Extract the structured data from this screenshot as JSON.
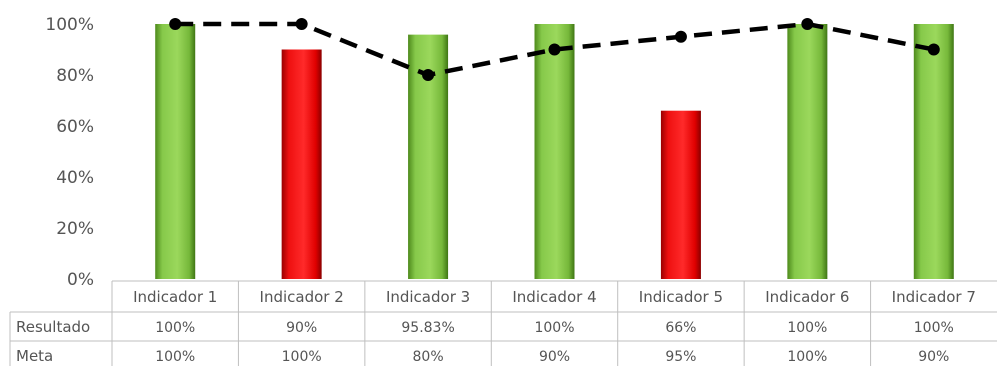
{
  "chart_data": {
    "type": "bar",
    "categories": [
      "Indicador 1",
      "Indicador 2",
      "Indicador 3",
      "Indicador 4",
      "Indicador 5",
      "Indicador 6",
      "Indicador 7"
    ],
    "series": [
      {
        "name": "Resultado",
        "type": "bar",
        "values": [
          100,
          90,
          95.83,
          100,
          66,
          100,
          100
        ],
        "labels": [
          "100%",
          "90%",
          "95.83%",
          "100%",
          "66%",
          "100%",
          "100%"
        ],
        "bar_colors": [
          "#7cc242",
          "#e00000",
          "#7cc242",
          "#7cc242",
          "#e00000",
          "#7cc242",
          "#7cc242"
        ]
      },
      {
        "name": "Meta",
        "type": "line",
        "style": "dashed",
        "values": [
          100,
          100,
          80,
          90,
          95,
          100,
          90
        ],
        "labels": [
          "100%",
          "100%",
          "80%",
          "90%",
          "95%",
          "100%",
          "90%"
        ]
      }
    ],
    "ylim": [
      0,
      100
    ],
    "yticks": [
      "0%",
      "20%",
      "40%",
      "60%",
      "80%",
      "100%"
    ],
    "ytick_values": [
      0,
      20,
      40,
      60,
      80,
      100
    ],
    "xlabel": "",
    "ylabel": "",
    "grid": false,
    "legend": "data-table",
    "colors": {
      "green": "#7cc242",
      "red": "#e00000",
      "line": "#000000",
      "table_border": "#bfbfbf"
    }
  }
}
